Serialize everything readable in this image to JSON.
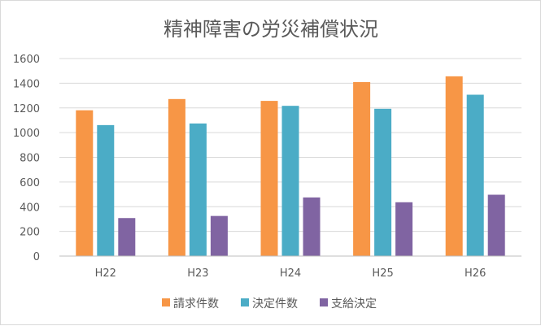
{
  "chart_data": {
    "type": "bar",
    "title": "精神障害の労災補償状況",
    "categories": [
      "H22",
      "H23",
      "H24",
      "H25",
      "H26"
    ],
    "series": [
      {
        "name": "請求件数",
        "color": "#f79646",
        "values": [
          1181,
          1272,
          1257,
          1409,
          1456
        ]
      },
      {
        "name": "決定件数",
        "color": "#4bacc6",
        "values": [
          1061,
          1074,
          1217,
          1193,
          1307
        ]
      },
      {
        "name": "支給決定",
        "color": "#8064a2",
        "values": [
          308,
          325,
          475,
          436,
          497
        ]
      }
    ],
    "ylim": [
      0,
      1600
    ],
    "yticks": [
      0,
      200,
      400,
      600,
      800,
      1000,
      1200,
      1400,
      1600
    ],
    "grid": true,
    "legend_position": "bottom"
  }
}
